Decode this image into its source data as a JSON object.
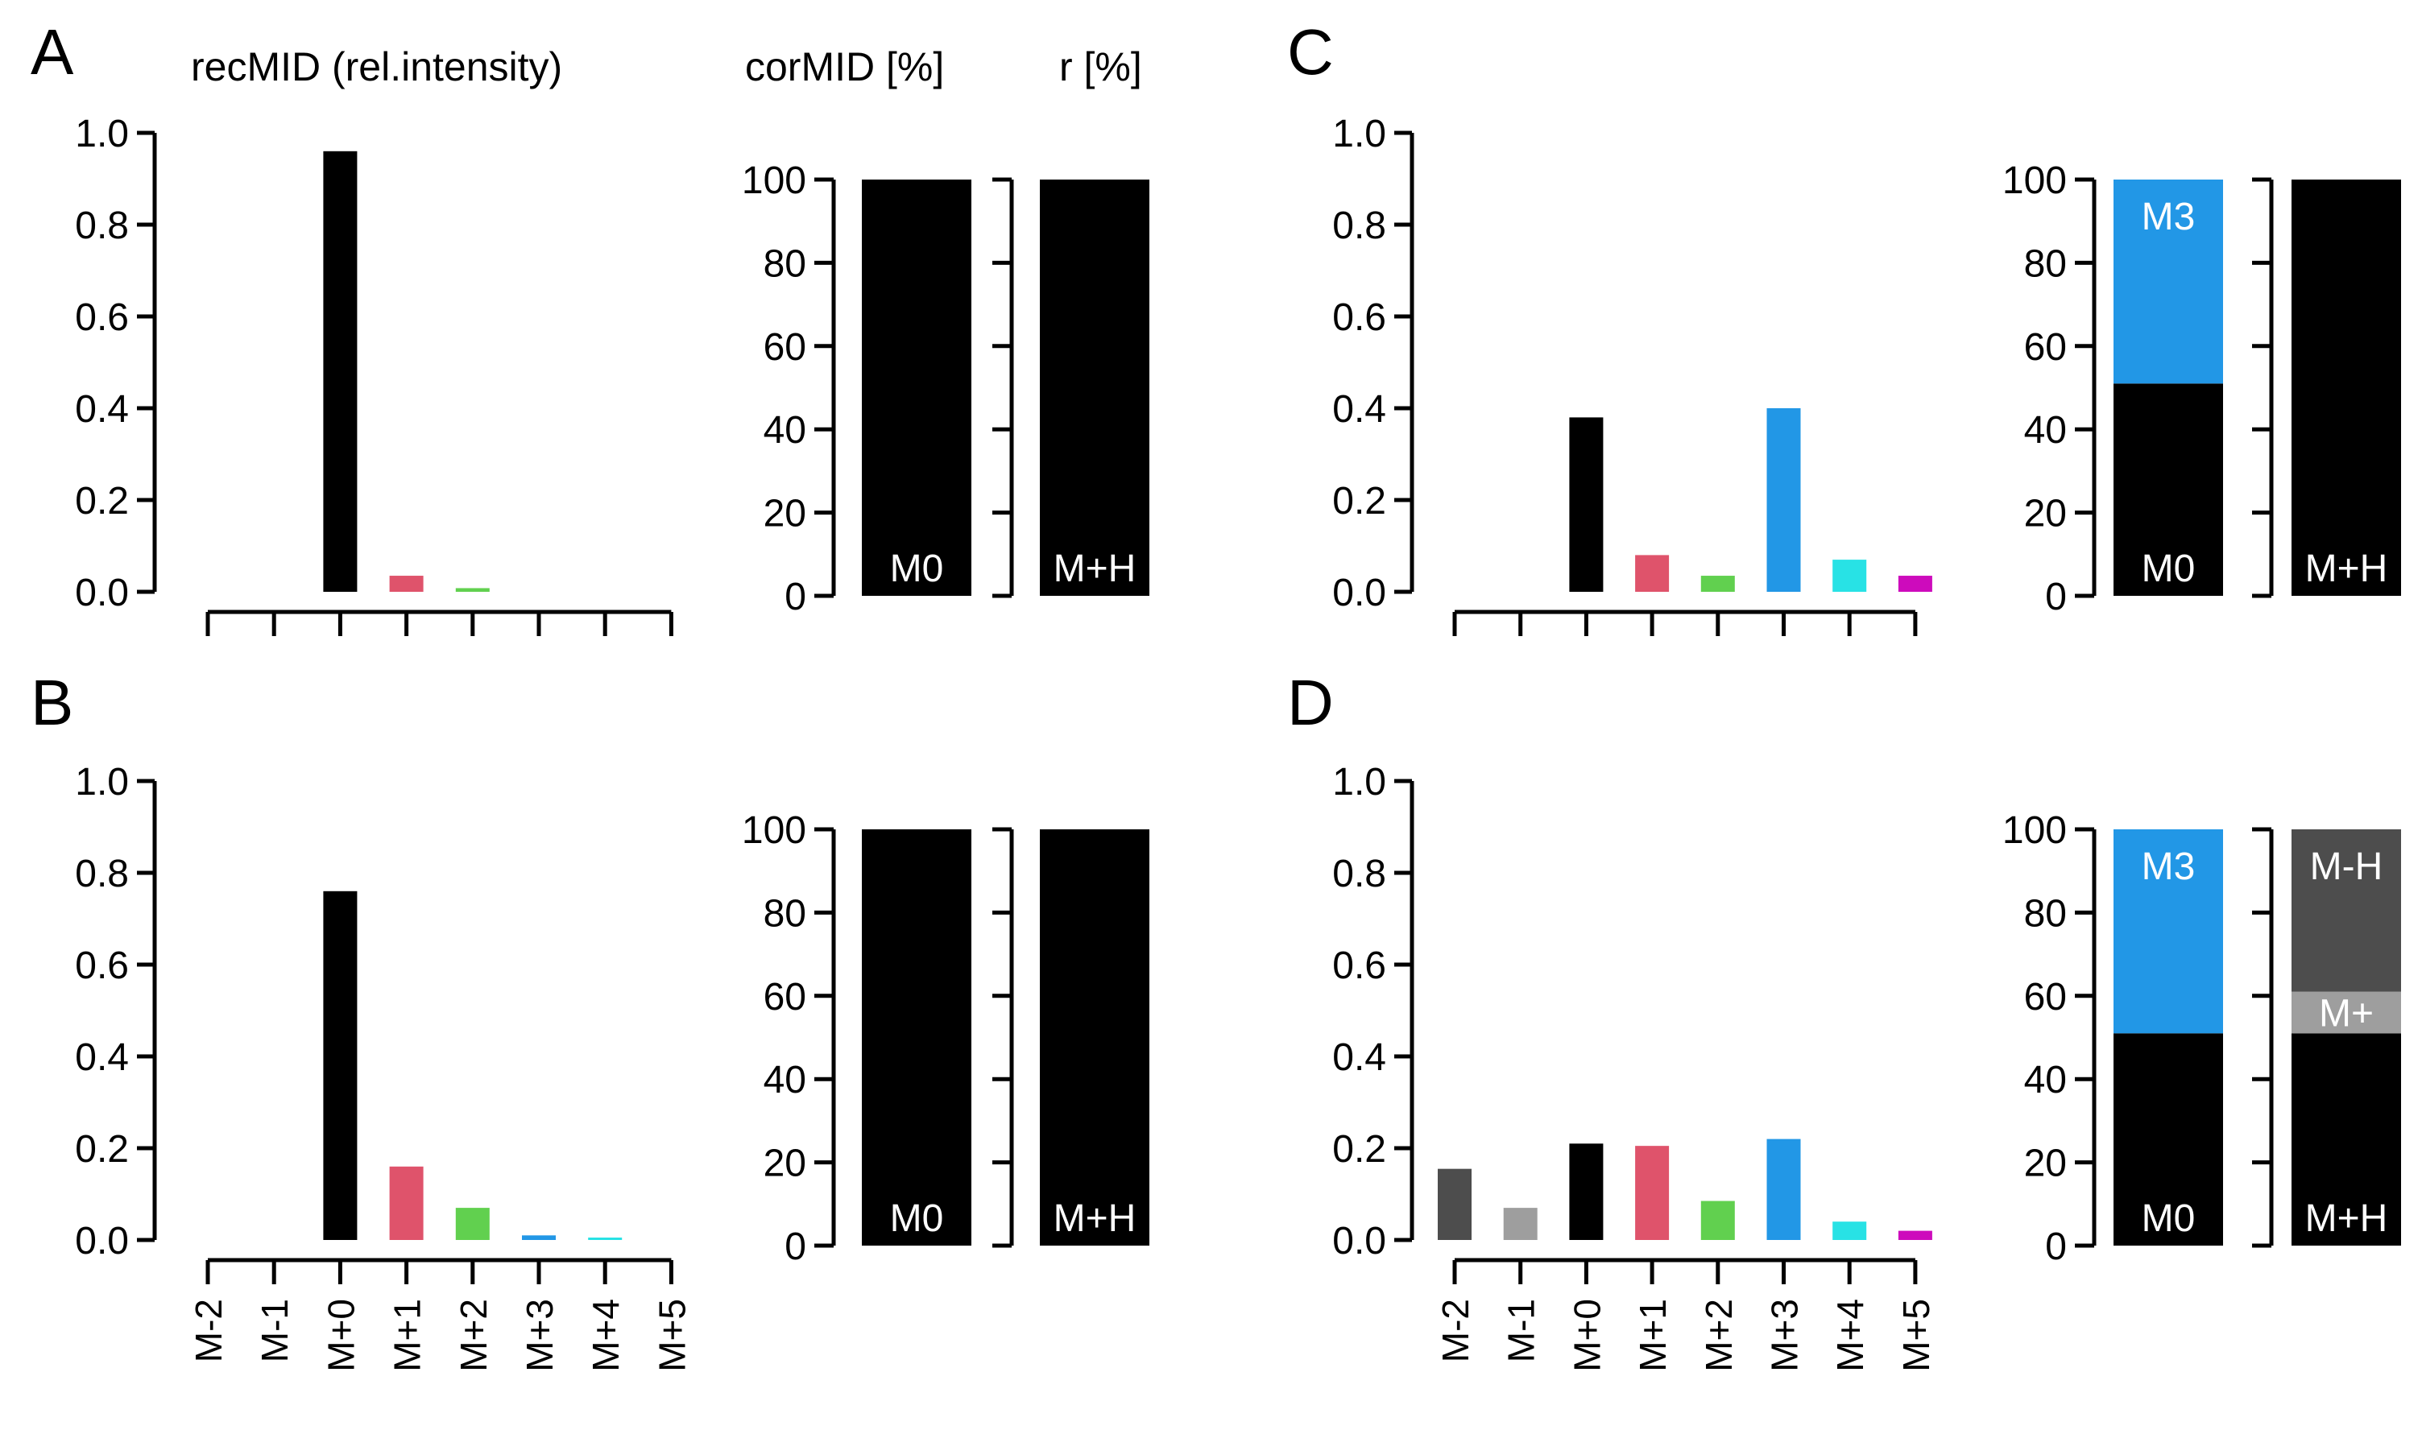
{
  "titles": {
    "recmid": "recMID (rel.intensity)",
    "cormid": "corMID [%]",
    "r": "r [%]"
  },
  "chart_data": [
    {
      "type": "bar",
      "panel": "A",
      "title": "recMID (rel.intensity)",
      "ylim": [
        0,
        1.0
      ],
      "yticks": [
        "0.0",
        "0.2",
        "0.4",
        "0.6",
        "0.8",
        "1.0"
      ],
      "categories": [
        "M-2",
        "M-1",
        "M+0",
        "M+1",
        "M+2",
        "M+3",
        "M+4",
        "M+5"
      ],
      "show_xlabels": false,
      "values": [
        0,
        0,
        0.96,
        0.035,
        0.008,
        0,
        0,
        0
      ],
      "colors": [
        "#4d4d4d",
        "#9e9e9e",
        "#000000",
        "#df536b",
        "#61d04f",
        "#2297e6",
        "#28e2e5",
        "#cd0bbc"
      ]
    },
    {
      "type": "bar",
      "panel": "B",
      "title": "",
      "ylim": [
        0,
        1.0
      ],
      "yticks": [
        "0.0",
        "0.2",
        "0.4",
        "0.6",
        "0.8",
        "1.0"
      ],
      "categories": [
        "M-2",
        "M-1",
        "M+0",
        "M+1",
        "M+2",
        "M+3",
        "M+4",
        "M+5"
      ],
      "show_xlabels": true,
      "values": [
        0,
        0,
        0.76,
        0.16,
        0.07,
        0.01,
        0.004,
        0
      ],
      "colors": [
        "#4d4d4d",
        "#9e9e9e",
        "#000000",
        "#df536b",
        "#61d04f",
        "#2297e6",
        "#28e2e5",
        "#cd0bbc"
      ]
    },
    {
      "type": "bar",
      "panel": "C",
      "title": "",
      "ylim": [
        0,
        1.0
      ],
      "yticks": [
        "0.0",
        "0.2",
        "0.4",
        "0.6",
        "0.8",
        "1.0"
      ],
      "categories": [
        "M-2",
        "M-1",
        "M+0",
        "M+1",
        "M+2",
        "M+3",
        "M+4",
        "M+5"
      ],
      "show_xlabels": false,
      "values": [
        0,
        0,
        0.38,
        0.08,
        0.035,
        0.4,
        0.07,
        0.035
      ],
      "colors": [
        "#4d4d4d",
        "#9e9e9e",
        "#000000",
        "#df536b",
        "#61d04f",
        "#2297e6",
        "#28e2e5",
        "#cd0bbc"
      ]
    },
    {
      "type": "bar",
      "panel": "D",
      "title": "",
      "ylim": [
        0,
        1.0
      ],
      "yticks": [
        "0.0",
        "0.2",
        "0.4",
        "0.6",
        "0.8",
        "1.0"
      ],
      "categories": [
        "M-2",
        "M-1",
        "M+0",
        "M+1",
        "M+2",
        "M+3",
        "M+4",
        "M+5"
      ],
      "show_xlabels": true,
      "values": [
        0.155,
        0.07,
        0.21,
        0.205,
        0.085,
        0.22,
        0.04,
        0.02
      ],
      "colors": [
        "#4d4d4d",
        "#9e9e9e",
        "#000000",
        "#df536b",
        "#61d04f",
        "#2297e6",
        "#28e2e5",
        "#cd0bbc"
      ]
    },
    {
      "type": "stacked-bar",
      "panel": "A",
      "title": "corMID [%]",
      "ylim": [
        0,
        100
      ],
      "yticks": [
        "0",
        "20",
        "40",
        "60",
        "80",
        "100"
      ],
      "segments": [
        {
          "label": "M0",
          "value": 100,
          "color": "#000000"
        }
      ]
    },
    {
      "type": "stacked-bar",
      "panel": "A",
      "title": "r [%]",
      "ylim": [
        0,
        100
      ],
      "segments": [
        {
          "label": "M+H",
          "value": 100,
          "color": "#000000"
        }
      ]
    },
    {
      "type": "stacked-bar",
      "panel": "B",
      "title": "",
      "ylim": [
        0,
        100
      ],
      "yticks": [
        "0",
        "20",
        "40",
        "60",
        "80",
        "100"
      ],
      "segments": [
        {
          "label": "M0",
          "value": 100,
          "color": "#000000"
        }
      ]
    },
    {
      "type": "stacked-bar",
      "panel": "B",
      "title": "",
      "ylim": [
        0,
        100
      ],
      "segments": [
        {
          "label": "M+H",
          "value": 100,
          "color": "#000000"
        }
      ]
    },
    {
      "type": "stacked-bar",
      "panel": "C",
      "title": "",
      "ylim": [
        0,
        100
      ],
      "yticks": [
        "0",
        "20",
        "40",
        "60",
        "80",
        "100"
      ],
      "segments": [
        {
          "label": "M0",
          "value": 51,
          "color": "#000000"
        },
        {
          "label": "M3",
          "value": 49,
          "color": "#2297e6"
        }
      ]
    },
    {
      "type": "stacked-bar",
      "panel": "C",
      "title": "",
      "ylim": [
        0,
        100
      ],
      "segments": [
        {
          "label": "M+H",
          "value": 100,
          "color": "#000000"
        }
      ]
    },
    {
      "type": "stacked-bar",
      "panel": "D",
      "title": "",
      "ylim": [
        0,
        100
      ],
      "yticks": [
        "0",
        "20",
        "40",
        "60",
        "80",
        "100"
      ],
      "segments": [
        {
          "label": "M0",
          "value": 51,
          "color": "#000000"
        },
        {
          "label": "M3",
          "value": 49,
          "color": "#2297e6"
        }
      ]
    },
    {
      "type": "stacked-bar",
      "panel": "D",
      "title": "",
      "ylim": [
        0,
        100
      ],
      "segments": [
        {
          "label": "M+H",
          "value": 51,
          "color": "#000000"
        },
        {
          "label": "M+",
          "value": 10,
          "color": "#9e9e9e"
        },
        {
          "label": "M-H",
          "value": 39,
          "color": "#4d4d4d"
        }
      ]
    }
  ]
}
